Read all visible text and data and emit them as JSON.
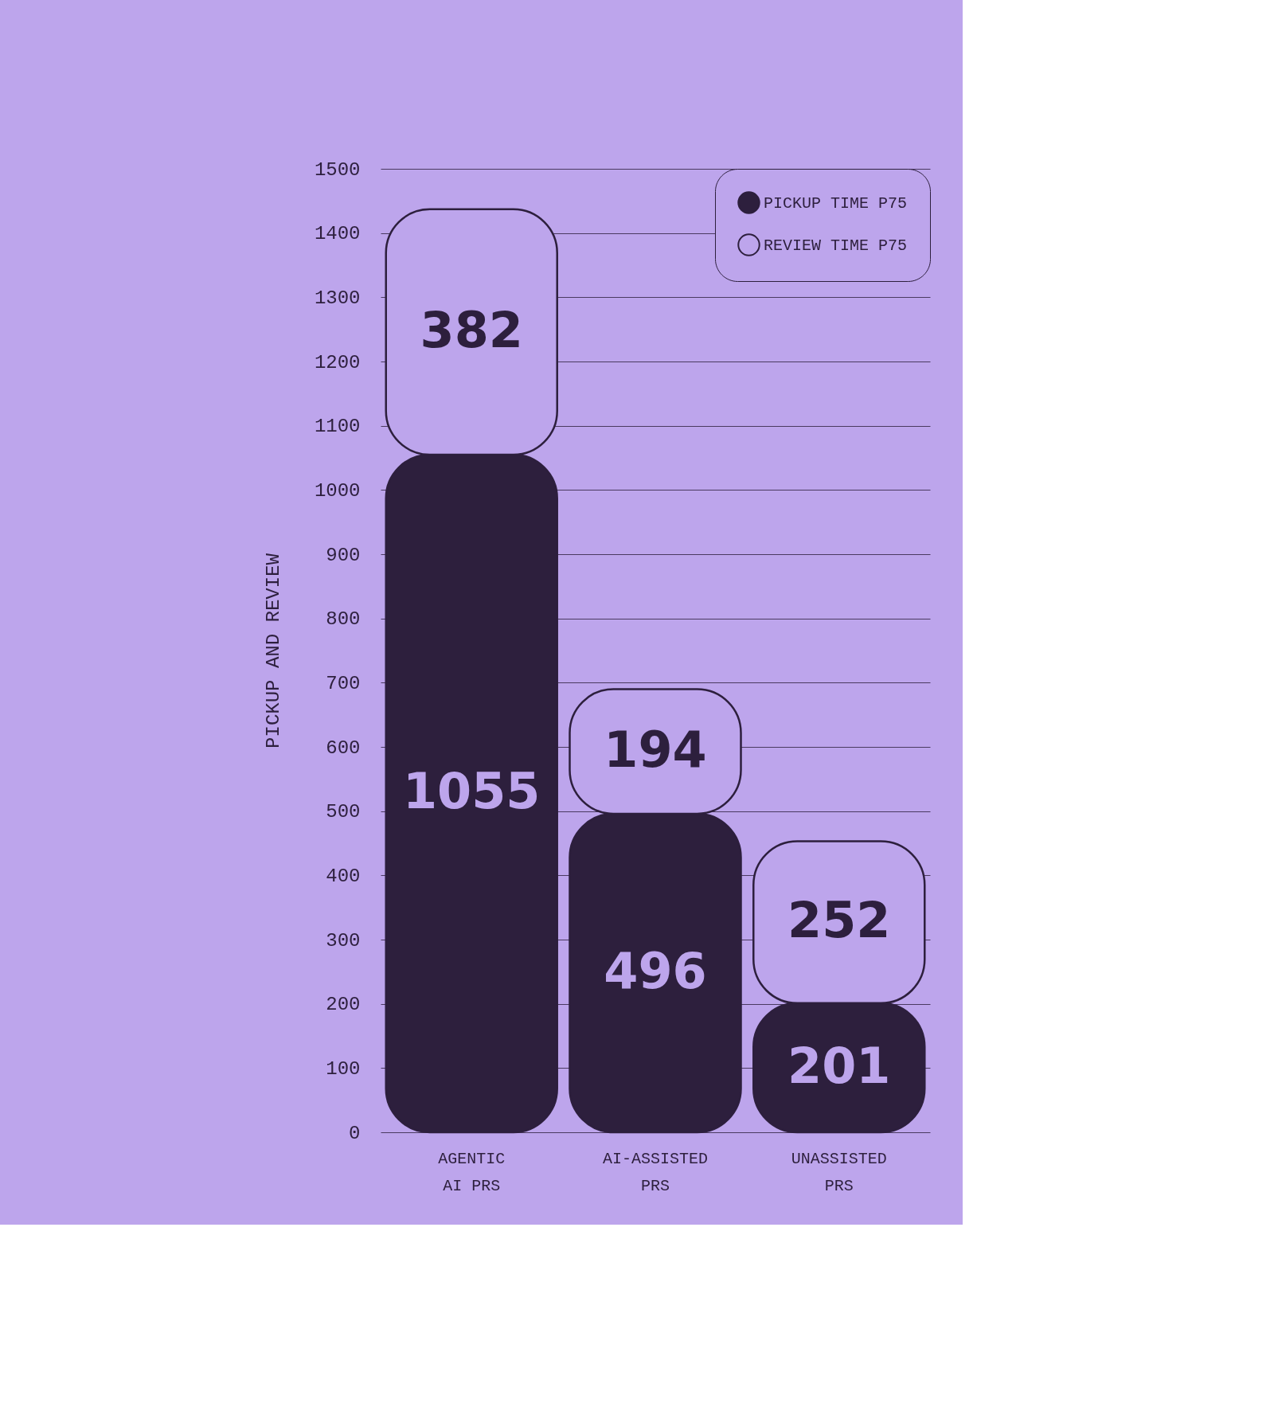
{
  "chart_data": {
    "type": "bar",
    "stacked": true,
    "ylabel": "PICKUP AND REVIEW",
    "categories": [
      "AGENTIC\nAI PRS",
      "AI-ASSISTED\nPRS",
      "UNASSISTED\nPRS"
    ],
    "series": [
      {
        "name": "PICKUP TIME P75",
        "color": "#2d1f3d",
        "values": [
          1055,
          496,
          201
        ]
      },
      {
        "name": "REVIEW TIME P75",
        "color": "#bda5ec",
        "values": [
          382,
          194,
          252
        ]
      }
    ],
    "ylim": [
      0,
      1500
    ],
    "yticks": [
      0,
      100,
      200,
      300,
      400,
      500,
      600,
      700,
      800,
      900,
      1000,
      1100,
      1200,
      1300,
      1400,
      1500
    ],
    "grid": "y",
    "legend": "top right",
    "data_labels": true
  }
}
